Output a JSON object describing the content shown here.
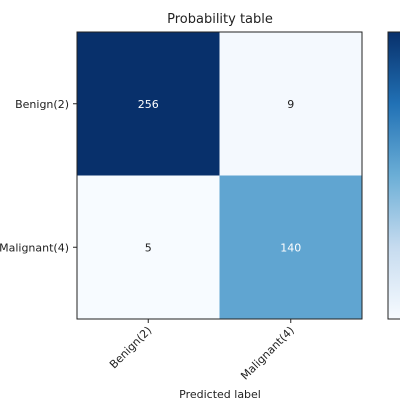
{
  "chart_data": {
    "type": "heatmap",
    "title": "Probability table",
    "xlabel": "Predicted label",
    "ylabel": "",
    "row_labels": [
      "Benign(2)",
      "Malignant(4)"
    ],
    "col_labels": [
      "Benign(2)",
      "Malignant(4)"
    ],
    "values": [
      [
        256,
        9
      ],
      [
        5,
        140
      ]
    ],
    "colormap": "Blues",
    "colorbar": true,
    "vmin": 5,
    "vmax": 256
  }
}
